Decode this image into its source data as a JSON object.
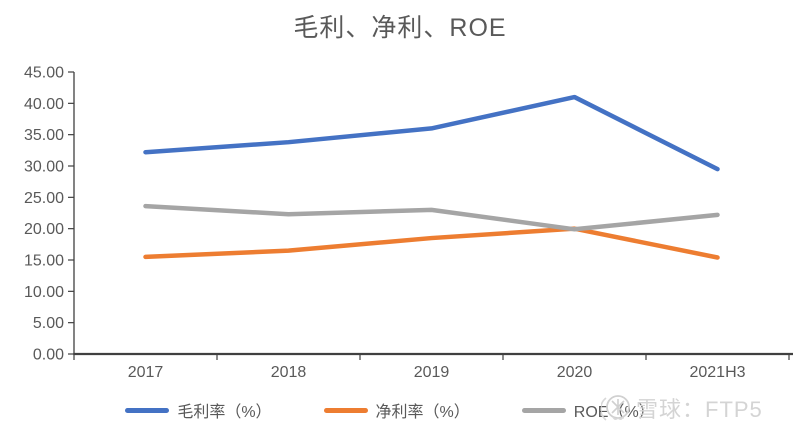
{
  "title": "毛利、净利、ROE",
  "watermark": {
    "icon": "xueqiu-snowball-icon",
    "text": "雪球：FTP5"
  },
  "colors": {
    "axis": "#404040",
    "tick_label": "#595959",
    "title": "#595959",
    "watermark": "#d4d4d4"
  },
  "chart_data": {
    "type": "line",
    "title": "毛利、净利、ROE",
    "categories": [
      "2017",
      "2018",
      "2019",
      "2020",
      "2021H3"
    ],
    "series": [
      {
        "name": "毛利率（%）",
        "color": "#4472C4",
        "values": [
          32.2,
          33.8,
          36.0,
          41.0,
          29.5
        ]
      },
      {
        "name": "净利率（%）",
        "color": "#ED7D31",
        "values": [
          15.5,
          16.5,
          18.5,
          20.0,
          15.4
        ]
      },
      {
        "name": "ROE（%）",
        "color": "#A5A5A5",
        "values": [
          23.6,
          22.3,
          23.0,
          19.9,
          22.2
        ]
      }
    ],
    "xlabel": "",
    "ylabel": "",
    "ylim": [
      0,
      45
    ],
    "ytick_step": 5,
    "ytick_labels": [
      "0.00",
      "5.00",
      "10.00",
      "15.00",
      "20.00",
      "25.00",
      "30.00",
      "35.00",
      "40.00",
      "45.00"
    ],
    "grid": false,
    "legend_position": "bottom"
  }
}
